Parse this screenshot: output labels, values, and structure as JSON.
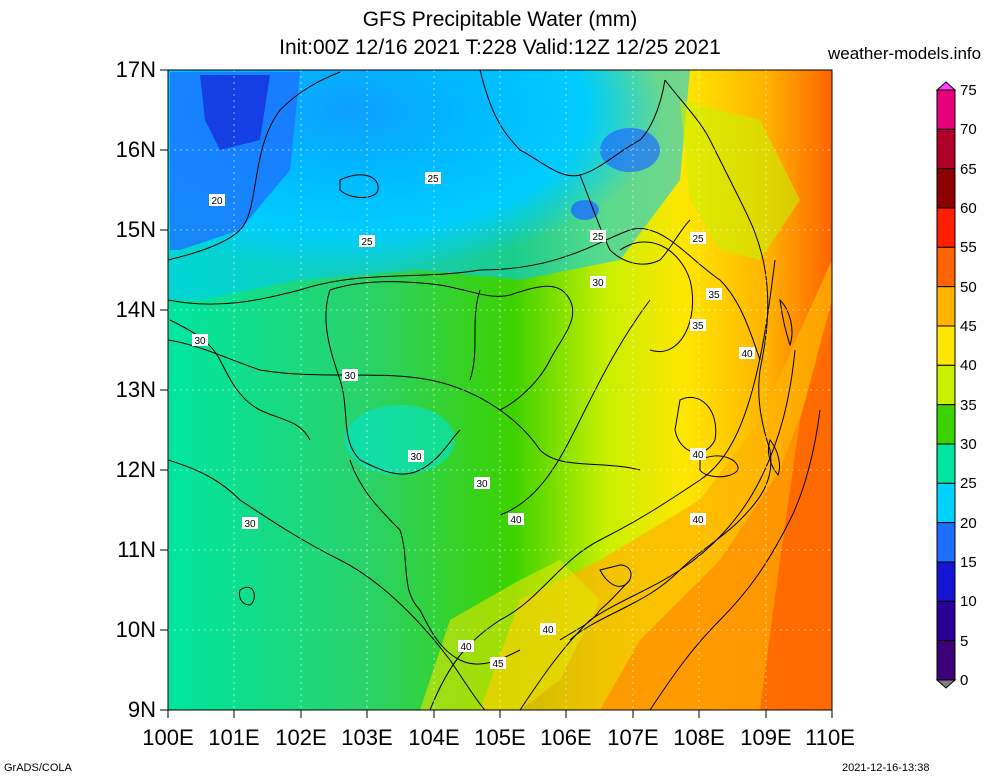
{
  "title_line1": "GFS Precipitable Water (mm)",
  "title_line2": "Init:00Z 12/16 2021 T:228 Valid:12Z 12/25 2021",
  "site": "weather-models.info",
  "footer_left": "GrADS/COLA",
  "footer_right": "2021-12-16-13:38",
  "lat_labels": [
    "17N",
    "16N",
    "15N",
    "14N",
    "13N",
    "12N",
    "11N",
    "10N",
    "9N"
  ],
  "lon_labels": [
    "100E",
    "101E",
    "102E",
    "103E",
    "104E",
    "105E",
    "106E",
    "107E",
    "108E",
    "109E",
    "110E"
  ],
  "colorbar": {
    "levels": [
      "75",
      "70",
      "65",
      "60",
      "55",
      "50",
      "45",
      "40",
      "35",
      "30",
      "25",
      "20",
      "15",
      "10",
      "5",
      "0"
    ],
    "colors": [
      "#ff40ff",
      "#e6007a",
      "#b00028",
      "#8c0000",
      "#ff1e00",
      "#ff6400",
      "#ffb400",
      "#ffe600",
      "#c8f000",
      "#3cd200",
      "#00e6a0",
      "#00d2ff",
      "#1e6eff",
      "#1414d2",
      "#280096",
      "#3c0078",
      "#808080"
    ]
  },
  "contour_labels": [
    "20",
    "25",
    "25",
    "25",
    "25",
    "30",
    "30",
    "30",
    "30",
    "30",
    "30",
    "35",
    "35",
    "40",
    "40",
    "40",
    "40",
    "40",
    "40",
    "45"
  ]
}
